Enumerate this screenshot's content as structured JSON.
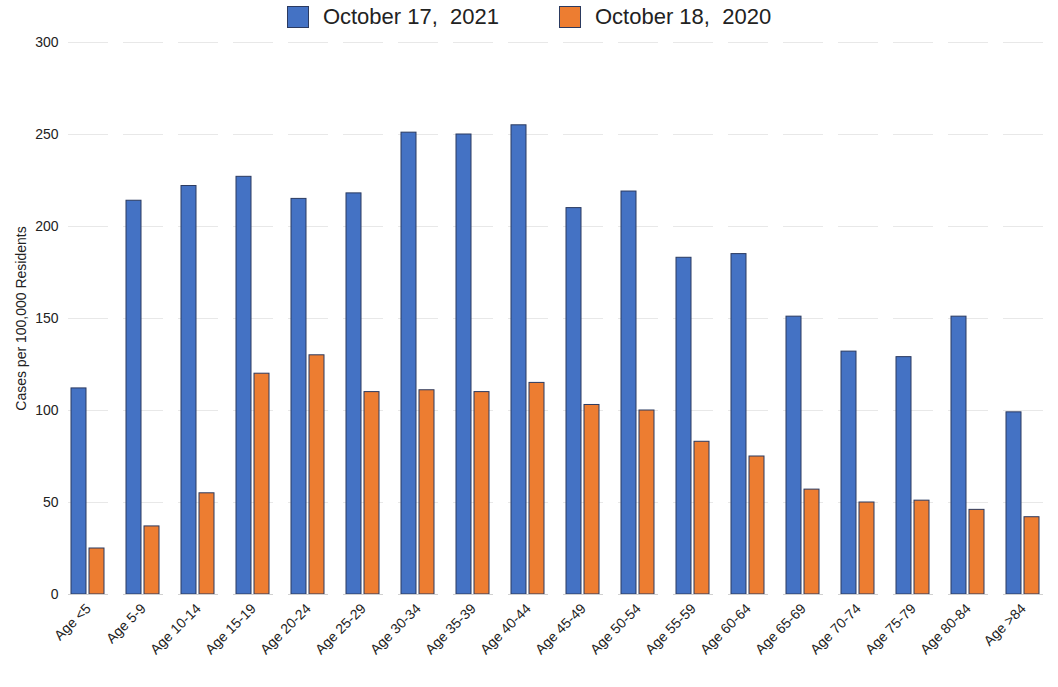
{
  "chart_data": {
    "type": "bar",
    "y_label": "Cases per 100,000 Residents",
    "categories": [
      "Age <5",
      "Age 5-9",
      "Age 10-14",
      "Age 15-19",
      "Age 20-24",
      "Age 25-29",
      "Age 30-34",
      "Age 35-39",
      "Age 40-44",
      "Age 45-49",
      "Age 50-54",
      "Age 55-59",
      "Age 60-64",
      "Age 65-69",
      "Age 70-74",
      "Age 75-79",
      "Age 80-84",
      "Age >84"
    ],
    "series": [
      {
        "name": "October 17,  2021",
        "color": "#4472c4",
        "values": [
          112,
          214,
          222,
          227,
          215,
          218,
          251,
          250,
          255,
          210,
          219,
          183,
          185,
          151,
          132,
          129,
          151,
          99
        ]
      },
      {
        "name": "October 18,  2020",
        "color": "#ed7d31",
        "values": [
          25,
          37,
          55,
          120,
          130,
          110,
          111,
          110,
          115,
          103,
          100,
          83,
          75,
          57,
          50,
          51,
          46,
          42
        ]
      }
    ],
    "ylim": [
      0,
      300
    ],
    "yticks": [
      0,
      50,
      100,
      150,
      200,
      250,
      300
    ],
    "grid": true,
    "legend": "top"
  }
}
